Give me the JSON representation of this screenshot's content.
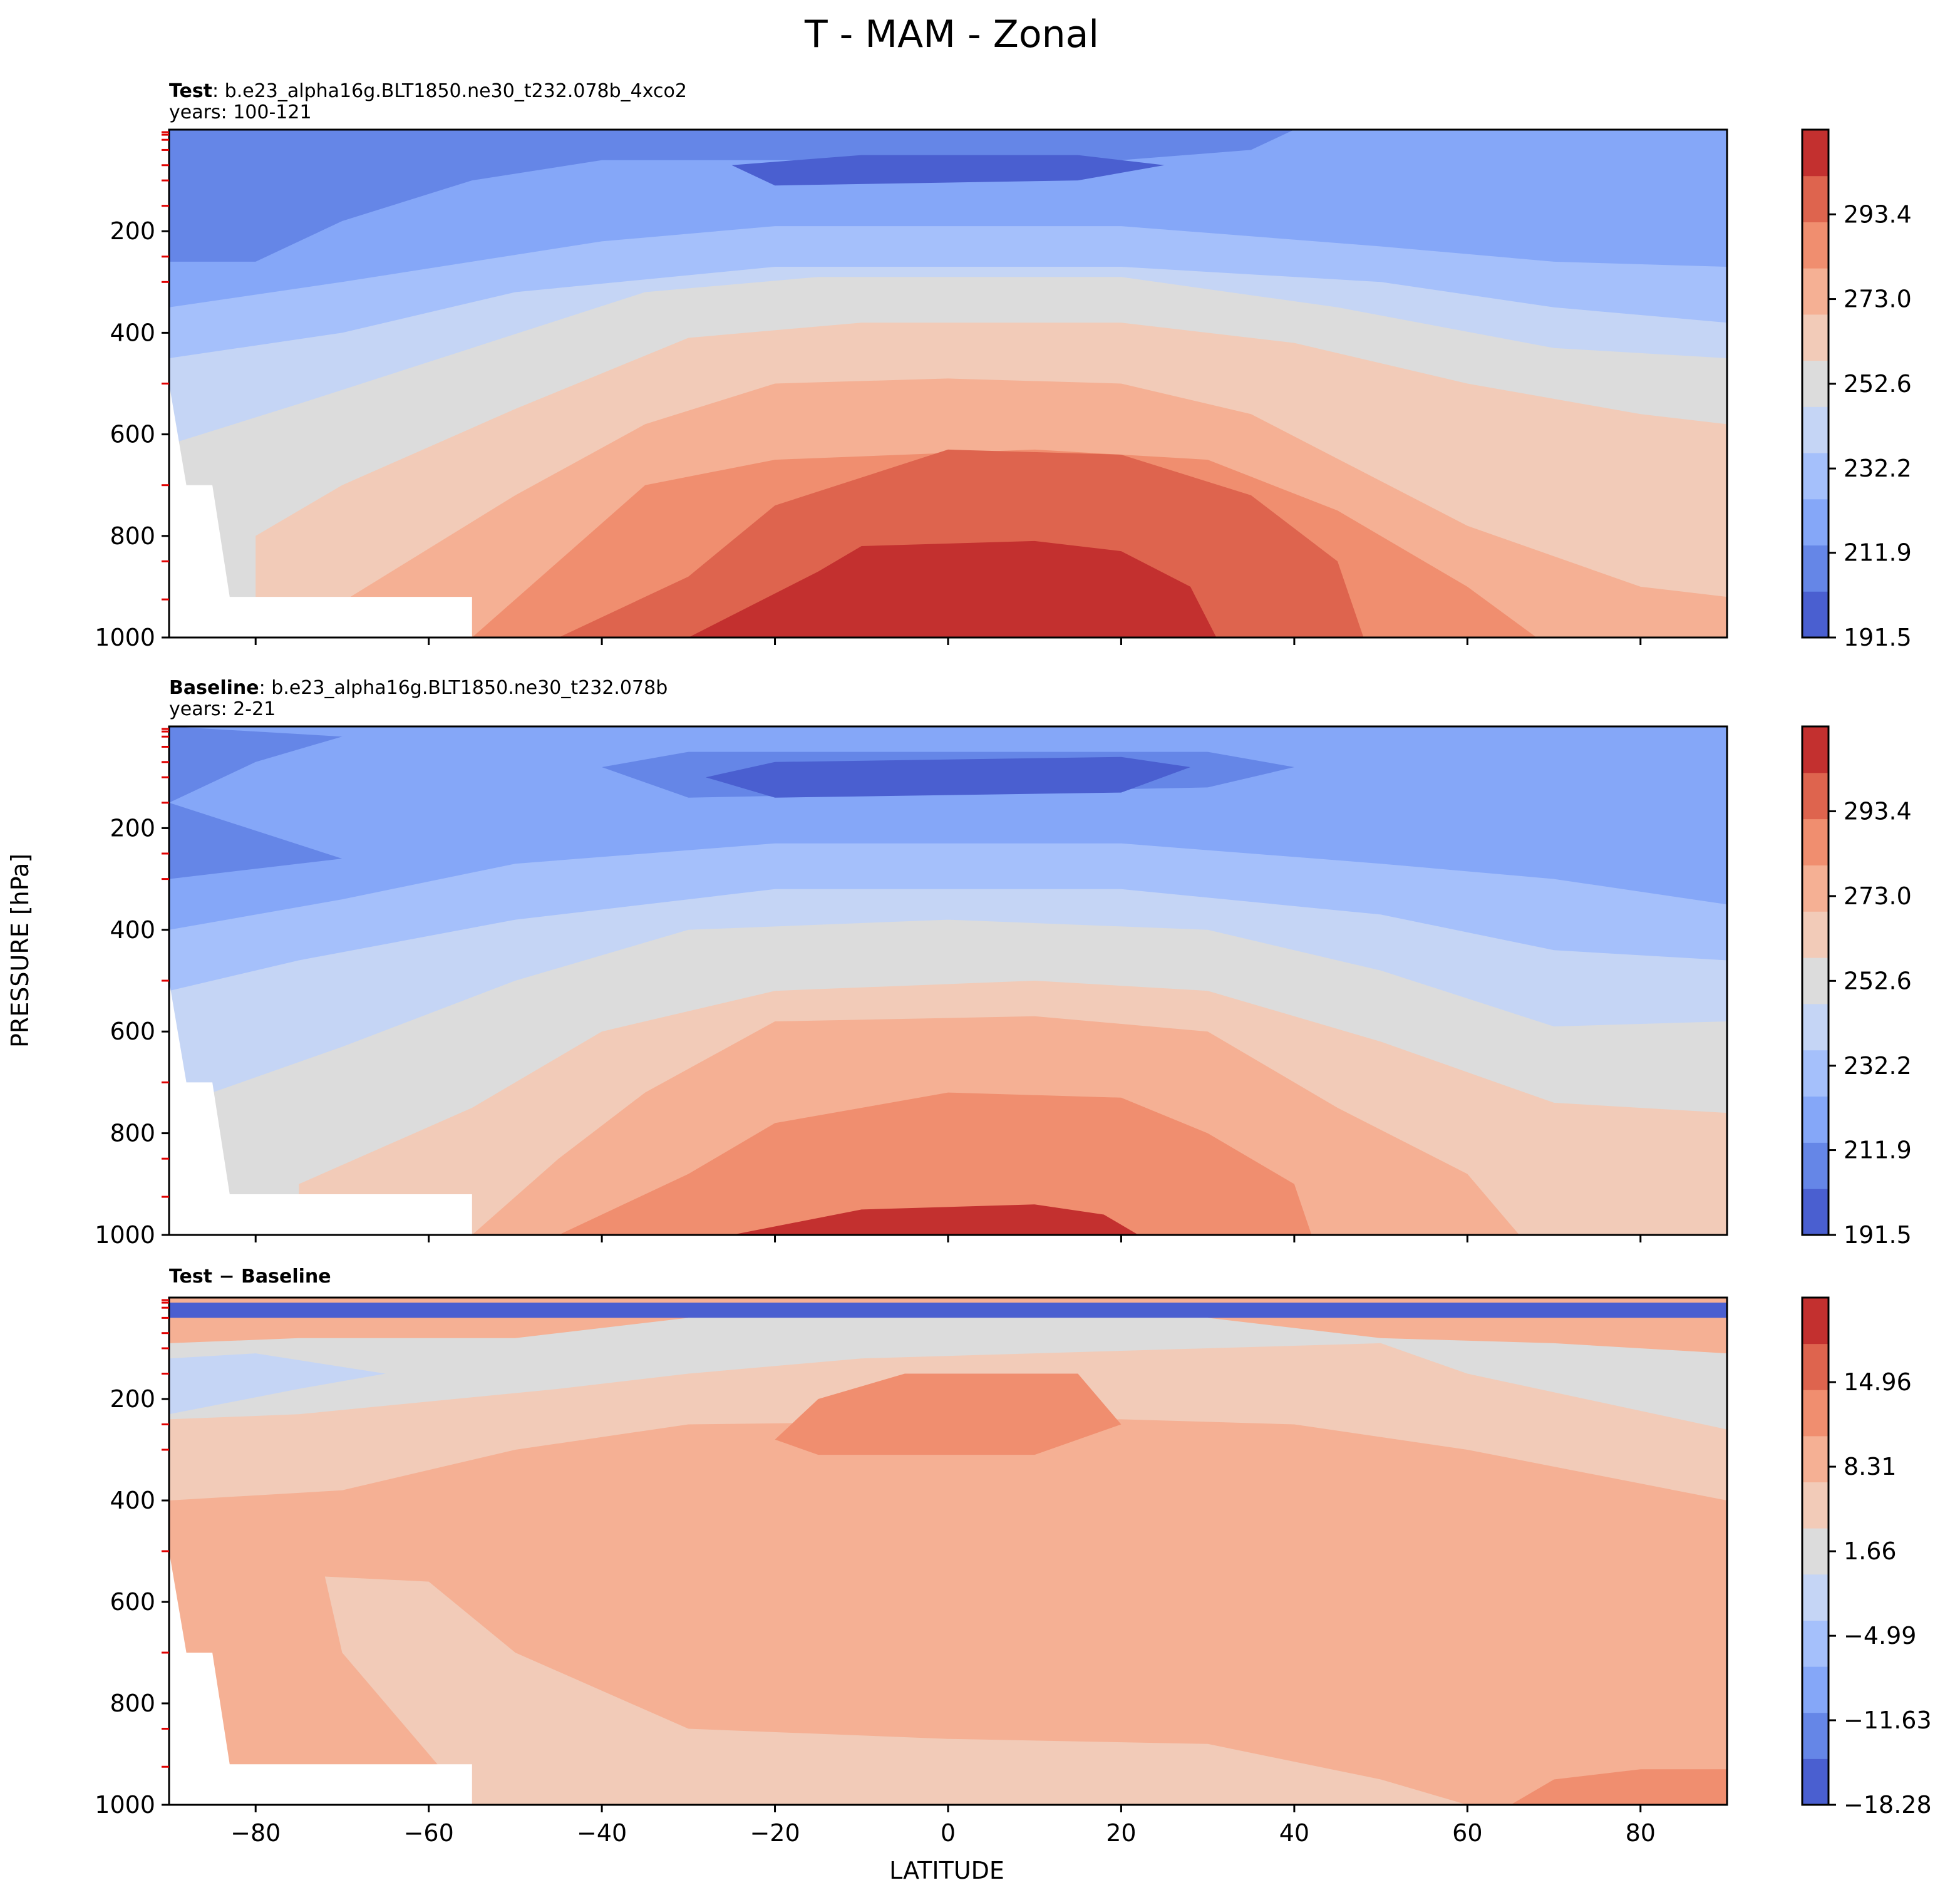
{
  "chart_data": {
    "type": "contour",
    "title": "T - MAM - Zonal",
    "xlabel": "LATITUDE",
    "ylabel": "PRESSURE [hPa]",
    "xlim": [
      -90,
      90
    ],
    "ylim": [
      1000,
      0
    ],
    "xticks": [
      -80,
      -60,
      -40,
      -20,
      0,
      20,
      40,
      60,
      80
    ],
    "xtick_labels": [
      "−80",
      "−60",
      "−40",
      "−20",
      "0",
      "20",
      "40",
      "60",
      "80"
    ],
    "yticks": [
      200,
      400,
      600,
      800,
      1000
    ],
    "ytick_labels": [
      "200",
      "400",
      "600",
      "800",
      "1000"
    ],
    "colors": [
      "#4a5fd0",
      "#6586e7",
      "#85a7f8",
      "#a5c0fb",
      "#c5d5f5",
      "#dcdcdc",
      "#f2cbb8",
      "#f5b094",
      "#f08e6f",
      "#de644e",
      "#c3302f"
    ],
    "panels": [
      {
        "name": "test",
        "header_bold": "Test",
        "header_text": ": b.e23_alpha16g.BLT1850.ne30_t232.078b_4xco2",
        "years": "years: 100-121",
        "colorbar_labels": [
          "191.5",
          "211.9",
          "232.2",
          "252.6",
          "273.0",
          "293.4"
        ],
        "colorbar_range": [
          191.5,
          313.8
        ],
        "contours": [
          [
            [
              -90,
              0
            ],
            [
              90,
              0
            ],
            [
              90,
              1000
            ],
            [
              -90,
              1000
            ]
          ],
          [
            [
              -90,
              0
            ],
            [
              40,
              0
            ],
            [
              35,
              40
            ],
            [
              20,
              60
            ],
            [
              -40,
              60
            ],
            [
              -55,
              100
            ],
            [
              -70,
              180
            ],
            [
              -80,
              260
            ],
            [
              -90,
              260
            ]
          ],
          [
            [
              -25,
              70
            ],
            [
              -10,
              50
            ],
            [
              15,
              50
            ],
            [
              25,
              70
            ],
            [
              15,
              100
            ],
            [
              -20,
              110
            ]
          ],
          [
            [
              -90,
              350
            ],
            [
              -70,
              300
            ],
            [
              -40,
              220
            ],
            [
              -20,
              190
            ],
            [
              20,
              190
            ],
            [
              50,
              230
            ],
            [
              70,
              260
            ],
            [
              90,
              270
            ],
            [
              90,
              1000
            ],
            [
              -90,
              1000
            ]
          ],
          [
            [
              -90,
              450
            ],
            [
              -70,
              400
            ],
            [
              -50,
              320
            ],
            [
              -20,
              270
            ],
            [
              20,
              270
            ],
            [
              50,
              300
            ],
            [
              70,
              350
            ],
            [
              90,
              380
            ],
            [
              90,
              1000
            ],
            [
              -90,
              1000
            ]
          ],
          [
            [
              -90,
              620
            ],
            [
              -75,
              540
            ],
            [
              -55,
              430
            ],
            [
              -35,
              320
            ],
            [
              -15,
              290
            ],
            [
              20,
              290
            ],
            [
              45,
              350
            ],
            [
              70,
              430
            ],
            [
              90,
              450
            ],
            [
              90,
              1000
            ],
            [
              -90,
              1000
            ]
          ],
          [
            [
              -80,
              800
            ],
            [
              -70,
              700
            ],
            [
              -50,
              550
            ],
            [
              -30,
              410
            ],
            [
              -10,
              380
            ],
            [
              20,
              380
            ],
            [
              40,
              420
            ],
            [
              60,
              500
            ],
            [
              80,
              560
            ],
            [
              90,
              580
            ],
            [
              90,
              1000
            ],
            [
              -80,
              1000
            ]
          ],
          [
            [
              -70,
              930
            ],
            [
              -50,
              720
            ],
            [
              -35,
              580
            ],
            [
              -20,
              500
            ],
            [
              0,
              490
            ],
            [
              20,
              500
            ],
            [
              35,
              560
            ],
            [
              60,
              780
            ],
            [
              80,
              900
            ],
            [
              90,
              920
            ],
            [
              90,
              1000
            ],
            [
              -70,
              1000
            ]
          ],
          [
            [
              -55,
              1000
            ],
            [
              -45,
              850
            ],
            [
              -35,
              700
            ],
            [
              -20,
              650
            ],
            [
              10,
              630
            ],
            [
              30,
              650
            ],
            [
              45,
              750
            ],
            [
              60,
              900
            ],
            [
              68,
              1000
            ]
          ],
          [
            [
              -45,
              1000
            ],
            [
              -30,
              880
            ],
            [
              -20,
              740
            ],
            [
              0,
              630
            ],
            [
              20,
              640
            ],
            [
              35,
              720
            ],
            [
              45,
              850
            ],
            [
              48,
              1000
            ]
          ],
          [
            [
              -30,
              1000
            ],
            [
              -15,
              870
            ],
            [
              -10,
              820
            ],
            [
              10,
              810
            ],
            [
              20,
              830
            ],
            [
              28,
              900
            ],
            [
              31,
              1000
            ]
          ]
        ],
        "max_color_index": 10
      },
      {
        "name": "baseline",
        "header_bold": "Baseline",
        "header_text": ": b.e23_alpha16g.BLT1850.ne30_t232.078b",
        "years": "years: 2-21",
        "colorbar_labels": [
          "191.5",
          "211.9",
          "232.2",
          "252.6",
          "273.0",
          "293.4"
        ],
        "colorbar_range": [
          191.5,
          313.8
        ],
        "contours": [
          [
            [
              -90,
              0
            ],
            [
              90,
              0
            ],
            [
              90,
              1000
            ],
            [
              -90,
              1000
            ]
          ],
          [
            [
              -90,
              0
            ],
            [
              -70,
              20
            ],
            [
              -80,
              70
            ],
            [
              -90,
              150
            ],
            [
              -70,
              260
            ],
            [
              -90,
              300
            ]
          ],
          [
            [
              -40,
              80
            ],
            [
              -30,
              50
            ],
            [
              30,
              50
            ],
            [
              40,
              80
            ],
            [
              30,
              120
            ],
            [
              -30,
              140
            ]
          ],
          [
            [
              -28,
              100
            ],
            [
              -20,
              70
            ],
            [
              20,
              60
            ],
            [
              28,
              80
            ],
            [
              20,
              130
            ],
            [
              -20,
              140
            ]
          ],
          [
            [
              -90,
              400
            ],
            [
              -70,
              340
            ],
            [
              -50,
              270
            ],
            [
              -20,
              230
            ],
            [
              20,
              230
            ],
            [
              50,
              270
            ],
            [
              70,
              300
            ],
            [
              90,
              350
            ],
            [
              90,
              1000
            ],
            [
              -90,
              1000
            ]
          ],
          [
            [
              -90,
              520
            ],
            [
              -75,
              460
            ],
            [
              -50,
              380
            ],
            [
              -20,
              320
            ],
            [
              20,
              320
            ],
            [
              50,
              370
            ],
            [
              70,
              440
            ],
            [
              90,
              460
            ],
            [
              90,
              1000
            ],
            [
              -90,
              1000
            ]
          ],
          [
            [
              -85,
              720
            ],
            [
              -70,
              630
            ],
            [
              -50,
              500
            ],
            [
              -30,
              400
            ],
            [
              0,
              380
            ],
            [
              30,
              400
            ],
            [
              50,
              480
            ],
            [
              70,
              590
            ],
            [
              90,
              580
            ],
            [
              90,
              1000
            ],
            [
              -85,
              1000
            ]
          ],
          [
            [
              -75,
              900
            ],
            [
              -55,
              750
            ],
            [
              -40,
              600
            ],
            [
              -20,
              520
            ],
            [
              10,
              500
            ],
            [
              30,
              520
            ],
            [
              50,
              620
            ],
            [
              70,
              740
            ],
            [
              90,
              760
            ],
            [
              90,
              1000
            ],
            [
              -75,
              1000
            ]
          ],
          [
            [
              -55,
              1000
            ],
            [
              -45,
              850
            ],
            [
              -35,
              720
            ],
            [
              -20,
              580
            ],
            [
              10,
              570
            ],
            [
              30,
              600
            ],
            [
              45,
              750
            ],
            [
              60,
              880
            ],
            [
              66,
              1000
            ]
          ],
          [
            [
              -45,
              1000
            ],
            [
              -30,
              880
            ],
            [
              -20,
              780
            ],
            [
              0,
              720
            ],
            [
              20,
              730
            ],
            [
              30,
              800
            ],
            [
              40,
              900
            ],
            [
              42,
              1000
            ]
          ],
          [
            [
              -25,
              1000
            ],
            [
              -10,
              950
            ],
            [
              10,
              940
            ],
            [
              18,
              960
            ],
            [
              22,
              1000
            ]
          ]
        ],
        "max_color_index": 10
      },
      {
        "name": "diff",
        "header_bold": "Test − Baseline",
        "header_text": "",
        "years": "",
        "colorbar_labels": [
          "−18.28",
          "−11.63",
          "−4.99",
          "1.66",
          "8.31",
          "14.96"
        ],
        "colorbar_range": [
          -18.28,
          21.61
        ],
        "contours": [
          [
            [
              -90,
              0
            ],
            [
              90,
              0
            ],
            [
              90,
              1000
            ],
            [
              -90,
              1000
            ]
          ],
          [
            [
              -90,
              10
            ],
            [
              90,
              10
            ],
            [
              90,
              40
            ],
            [
              -90,
              40
            ]
          ],
          [
            [
              -90,
              90
            ],
            [
              -75,
              80
            ],
            [
              -50,
              80
            ],
            [
              -30,
              40
            ],
            [
              30,
              40
            ],
            [
              50,
              80
            ],
            [
              70,
              90
            ],
            [
              90,
              110
            ],
            [
              90,
              260
            ],
            [
              -90,
              260
            ]
          ],
          [
            [
              -90,
              230
            ],
            [
              -75,
              180
            ],
            [
              -65,
              150
            ],
            [
              -80,
              110
            ],
            [
              -90,
              120
            ]
          ],
          [
            [
              -90,
              240
            ],
            [
              -75,
              230
            ],
            [
              -45,
              180
            ],
            [
              -30,
              150
            ],
            [
              -10,
              120
            ],
            [
              30,
              100
            ],
            [
              50,
              90
            ],
            [
              60,
              150
            ],
            [
              90,
              260
            ],
            [
              90,
              1000
            ],
            [
              -90,
              1000
            ]
          ],
          [
            [
              -90,
              400
            ],
            [
              -70,
              380
            ],
            [
              -50,
              300
            ],
            [
              -30,
              250
            ],
            [
              20,
              240
            ],
            [
              40,
              250
            ],
            [
              60,
              300
            ],
            [
              90,
              400
            ],
            [
              90,
              1000
            ],
            [
              -90,
              1000
            ]
          ],
          [
            [
              -20,
              280
            ],
            [
              -15,
              200
            ],
            [
              -5,
              150
            ],
            [
              15,
              150
            ],
            [
              20,
              250
            ],
            [
              10,
              310
            ],
            [
              -15,
              310
            ]
          ],
          [
            [
              -55,
              1000
            ],
            [
              -60,
              900
            ],
            [
              -70,
              700
            ],
            [
              -72,
              550
            ],
            [
              -60,
              560
            ],
            [
              -50,
              700
            ],
            [
              -30,
              850
            ],
            [
              0,
              870
            ],
            [
              30,
              880
            ],
            [
              50,
              950
            ],
            [
              60,
              1000
            ]
          ],
          [
            [
              65,
              1000
            ],
            [
              70,
              950
            ],
            [
              80,
              930
            ],
            [
              90,
              930
            ],
            [
              90,
              1000
            ]
          ]
        ],
        "max_color_index": 8
      }
    ]
  }
}
